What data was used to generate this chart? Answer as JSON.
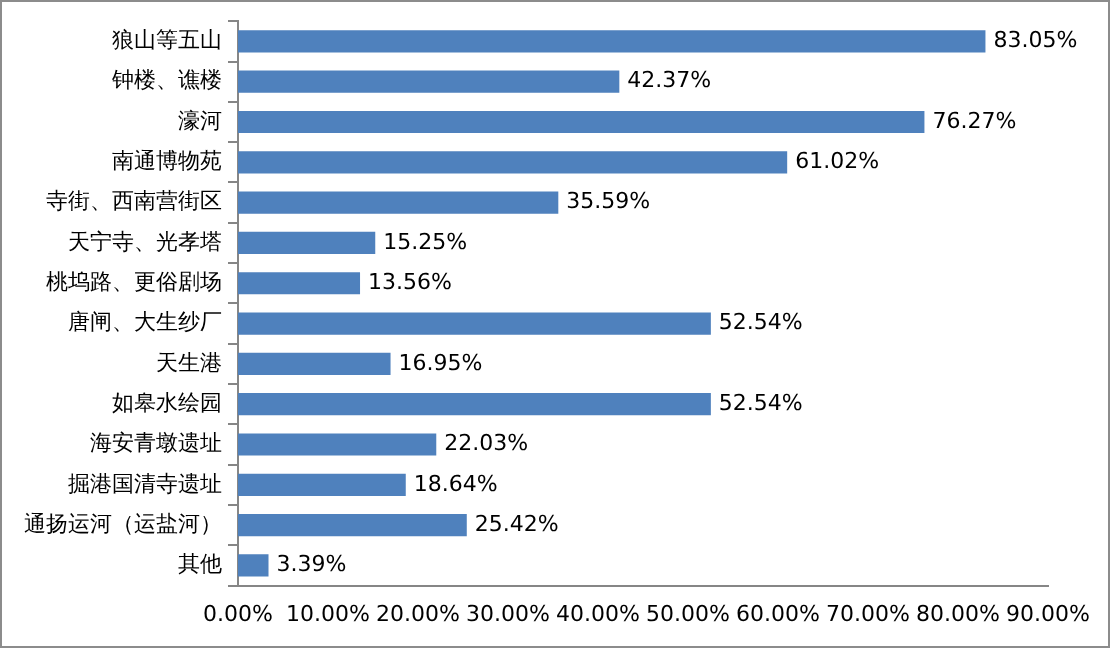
{
  "chart_data": {
    "type": "bar",
    "orientation": "horizontal",
    "categories": [
      "狼山等五山",
      "钟楼、谯楼",
      "濠河",
      "南通博物苑",
      "寺街、西南营街区",
      "天宁寺、光孝塔",
      "桃坞路、更俗剧场",
      "唐闸、大生纱厂",
      "天生港",
      "如皋水绘园",
      "海安青墩遗址",
      "掘港国清寺遗址",
      "通扬运河（运盐河）",
      "其他"
    ],
    "values": [
      83.05,
      42.37,
      76.27,
      61.02,
      35.59,
      15.25,
      13.56,
      52.54,
      16.95,
      52.54,
      22.03,
      18.64,
      25.42,
      3.39
    ],
    "value_labels": [
      "83.05%",
      "42.37%",
      "76.27%",
      "61.02%",
      "35.59%",
      "15.25%",
      "13.56%",
      "52.54%",
      "16.95%",
      "52.54%",
      "22.03%",
      "18.64%",
      "25.42%",
      "3.39%"
    ],
    "color": "#4f81bd",
    "xlim": [
      0,
      90
    ],
    "xticks": [
      {
        "value": 0,
        "label": "0.00%"
      },
      {
        "value": 10,
        "label": "10.00%"
      },
      {
        "value": 20,
        "label": "20.00%"
      },
      {
        "value": 30,
        "label": "30.00%"
      },
      {
        "value": 40,
        "label": "40.00%"
      },
      {
        "value": 50,
        "label": "50.00%"
      },
      {
        "value": 60,
        "label": "60.00%"
      },
      {
        "value": 70,
        "label": "70.00%"
      },
      {
        "value": 80,
        "label": "80.00%"
      },
      {
        "value": 90,
        "label": "90.00%"
      }
    ],
    "grid": false,
    "legend": false
  }
}
